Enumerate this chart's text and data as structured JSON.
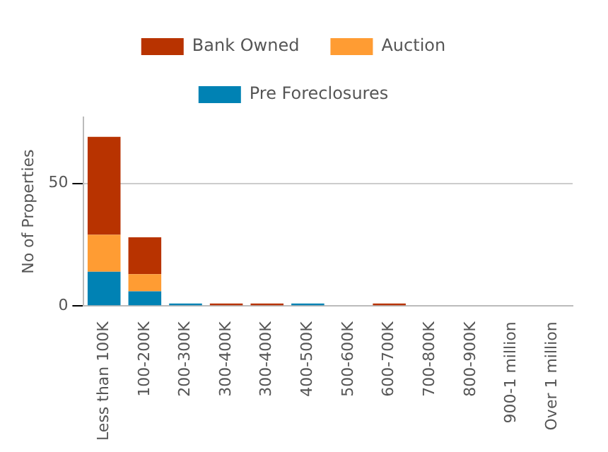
{
  "chart_data": {
    "type": "bar",
    "stacked": true,
    "ylabel": "No of Properties",
    "categories": [
      "Less than 100K",
      "100-200K",
      "200-300K",
      "300-400K",
      "300-400K",
      "400-500K",
      "500-600K",
      "600-700K",
      "700-800K",
      "800-900K",
      "900-1 million",
      "Over 1 million"
    ],
    "series": [
      {
        "name": "Pre Foreclosures",
        "color": "#0082b4",
        "values": [
          14,
          6,
          1,
          0,
          0,
          1,
          0,
          0,
          0,
          0,
          0,
          0
        ]
      },
      {
        "name": "Auction",
        "color": "#ff9c33",
        "values": [
          15,
          7,
          0,
          0,
          0,
          0,
          0,
          0,
          0,
          0,
          0,
          0
        ]
      },
      {
        "name": "Bank Owned",
        "color": "#b83300",
        "values": [
          40,
          15,
          0,
          1,
          1,
          0,
          0,
          1,
          0,
          0,
          0,
          0
        ]
      }
    ],
    "ylim": [
      0,
      77
    ],
    "yticks": [
      0,
      50
    ],
    "grid": "y",
    "legend": "top"
  }
}
